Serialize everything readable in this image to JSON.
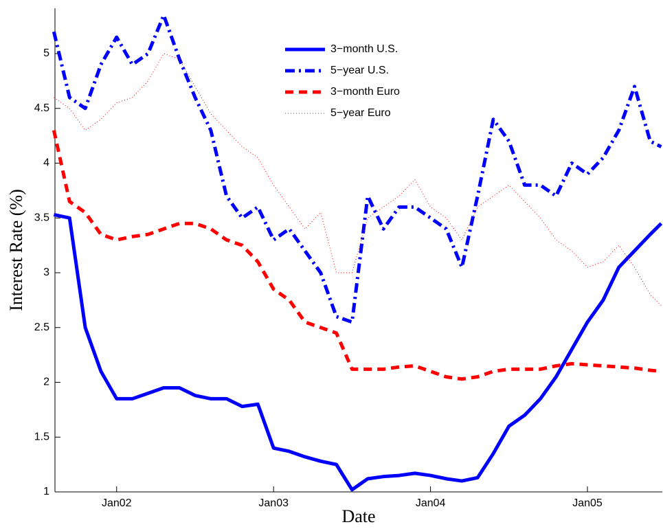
{
  "chart_data": {
    "type": "line",
    "xlabel": "Date",
    "ylabel": "Interest Rate (%)",
    "x": [
      2001.6,
      2001.7,
      2001.8,
      2001.9,
      2002.0,
      2002.1,
      2002.2,
      2002.3,
      2002.4,
      2002.5,
      2002.6,
      2002.7,
      2002.8,
      2002.9,
      2003.0,
      2003.1,
      2003.2,
      2003.3,
      2003.4,
      2003.5,
      2003.6,
      2003.7,
      2003.8,
      2003.9,
      2004.0,
      2004.1,
      2004.2,
      2004.3,
      2004.4,
      2004.5,
      2004.6,
      2004.7,
      2004.8,
      2004.9,
      2005.0,
      2005.1,
      2005.2,
      2005.3,
      2005.4,
      2005.47
    ],
    "series": [
      {
        "name": "3−month U.S.",
        "color": "#0000ff",
        "linestyle": "solid",
        "linewidth": 5,
        "values": [
          3.53,
          3.5,
          2.5,
          2.1,
          1.85,
          1.85,
          1.9,
          1.95,
          1.95,
          1.88,
          1.85,
          1.85,
          1.78,
          1.8,
          1.4,
          1.37,
          1.32,
          1.28,
          1.25,
          1.02,
          1.12,
          1.14,
          1.15,
          1.17,
          1.15,
          1.12,
          1.1,
          1.13,
          1.35,
          1.6,
          1.7,
          1.85,
          2.05,
          2.3,
          2.55,
          2.75,
          3.05,
          3.2,
          3.35,
          3.45
        ]
      },
      {
        "name": "5−year U.S.",
        "color": "#0000ff",
        "linestyle": "dashdot",
        "linewidth": 5,
        "values": [
          5.2,
          4.6,
          4.5,
          4.9,
          5.15,
          4.9,
          5.0,
          5.35,
          4.95,
          4.6,
          4.3,
          3.7,
          3.5,
          3.6,
          3.3,
          3.4,
          3.2,
          3.0,
          2.6,
          2.55,
          3.7,
          3.4,
          3.6,
          3.6,
          3.5,
          3.4,
          3.05,
          3.7,
          4.4,
          4.2,
          3.8,
          3.8,
          3.7,
          4.0,
          3.9,
          4.05,
          4.3,
          4.7,
          4.2,
          4.15
        ]
      },
      {
        "name": "3−month Euro",
        "color": "#ff0000",
        "linestyle": "dashed",
        "linewidth": 5,
        "values": [
          4.3,
          3.65,
          3.55,
          3.35,
          3.3,
          3.33,
          3.35,
          3.4,
          3.45,
          3.45,
          3.4,
          3.3,
          3.25,
          3.1,
          2.85,
          2.75,
          2.55,
          2.5,
          2.45,
          2.12,
          2.12,
          2.12,
          2.14,
          2.15,
          2.1,
          2.05,
          2.03,
          2.05,
          2.1,
          2.12,
          2.12,
          2.12,
          2.15,
          2.17,
          2.16,
          2.15,
          2.14,
          2.13,
          2.11,
          2.1
        ]
      },
      {
        "name": "5−year Euro",
        "color": "#ff0000",
        "linestyle": "dotted",
        "linewidth": 1,
        "values": [
          4.6,
          4.5,
          4.3,
          4.4,
          4.55,
          4.6,
          4.75,
          5.0,
          4.95,
          4.7,
          4.45,
          4.3,
          4.15,
          4.05,
          3.8,
          3.6,
          3.4,
          3.55,
          3.0,
          3.0,
          3.5,
          3.6,
          3.7,
          3.85,
          3.6,
          3.5,
          3.3,
          3.6,
          3.7,
          3.8,
          3.65,
          3.5,
          3.3,
          3.2,
          3.05,
          3.1,
          3.25,
          3.05,
          2.8,
          2.7
        ]
      }
    ],
    "xlim": [
      2001.607,
      2005.477
    ],
    "xticks": [
      {
        "value": 2002,
        "label": "Jan02"
      },
      {
        "value": 2003,
        "label": "Jan03"
      },
      {
        "value": 2004,
        "label": "Jan04"
      },
      {
        "value": 2005,
        "label": "Jan05"
      }
    ],
    "ylim": [
      1,
      5.414
    ],
    "yticks": [
      1,
      1.5,
      2,
      2.5,
      3,
      3.5,
      4,
      4.5,
      5
    ],
    "grid": false,
    "legend": "top"
  }
}
